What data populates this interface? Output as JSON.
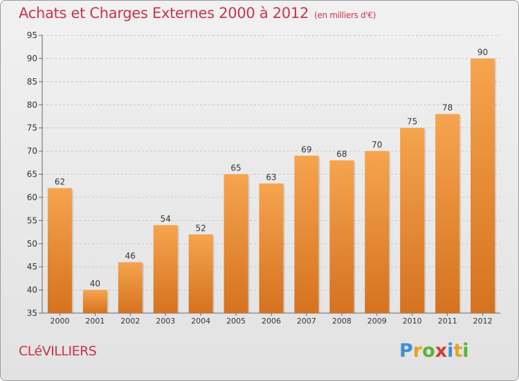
{
  "header": {
    "title": "Achats et Charges Externes 2000 à 2012",
    "unit": "(en milliers d'€)"
  },
  "footer": {
    "city": "CLéVILLIERS",
    "brand": [
      "P",
      "r",
      "o",
      "x",
      "i",
      "t",
      "i"
    ],
    "brand_colors": [
      "#3a8fd6",
      "#e7a21c",
      "#5bb234",
      "#d83a2f",
      "#3a8fd6",
      "#e7a21c",
      "#5bb234"
    ]
  },
  "colors": {
    "bar_top": "#f6a44e",
    "bar_bottom": "#d5721f",
    "title": "#c7344f",
    "grid": "#c9c9c9"
  },
  "chart_data": {
    "type": "bar",
    "title": "Achats et Charges Externes 2000 à 2012",
    "xlabel": "",
    "ylabel": "",
    "categories": [
      "2000",
      "2001",
      "2002",
      "2003",
      "2004",
      "2005",
      "2006",
      "2007",
      "2008",
      "2009",
      "2010",
      "2011",
      "2012"
    ],
    "values": [
      62,
      40,
      46,
      54,
      52,
      65,
      63,
      69,
      68,
      70,
      75,
      78,
      90
    ],
    "ylim": [
      35,
      95
    ],
    "yticks": [
      35,
      40,
      45,
      50,
      55,
      60,
      65,
      70,
      75,
      80,
      85,
      90,
      95
    ],
    "grid": "horizontal dashed"
  }
}
